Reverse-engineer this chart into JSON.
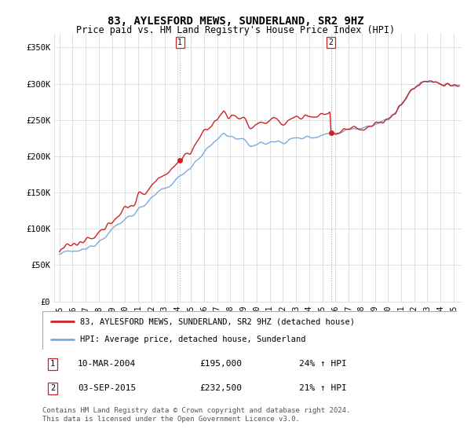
{
  "title": "83, AYLESFORD MEWS, SUNDERLAND, SR2 9HZ",
  "subtitle": "Price paid vs. HM Land Registry's House Price Index (HPI)",
  "legend_line1": "83, AYLESFORD MEWS, SUNDERLAND, SR2 9HZ (detached house)",
  "legend_line2": "HPI: Average price, detached house, Sunderland",
  "transaction1_date": "10-MAR-2004",
  "transaction1_price": "£195,000",
  "transaction1_hpi": "24% ↑ HPI",
  "transaction2_date": "03-SEP-2015",
  "transaction2_price": "£232,500",
  "transaction2_hpi": "21% ↑ HPI",
  "footer1": "Contains HM Land Registry data © Crown copyright and database right 2024.",
  "footer2": "This data is licensed under the Open Government Licence v3.0.",
  "hpi_color": "#7aaadd",
  "price_color": "#cc2222",
  "ylim_min": 0,
  "ylim_max": 370000,
  "yticks": [
    0,
    50000,
    100000,
    150000,
    200000,
    250000,
    300000,
    350000
  ],
  "ytick_labels": [
    "£0",
    "£50K",
    "£100K",
    "£150K",
    "£200K",
    "£250K",
    "£300K",
    "£350K"
  ],
  "background_color": "#ffffff",
  "grid_color": "#e0e0e0",
  "t1_year": 2004.167,
  "t1_price": 195000,
  "t2_year": 2015.667,
  "t2_price": 232500
}
